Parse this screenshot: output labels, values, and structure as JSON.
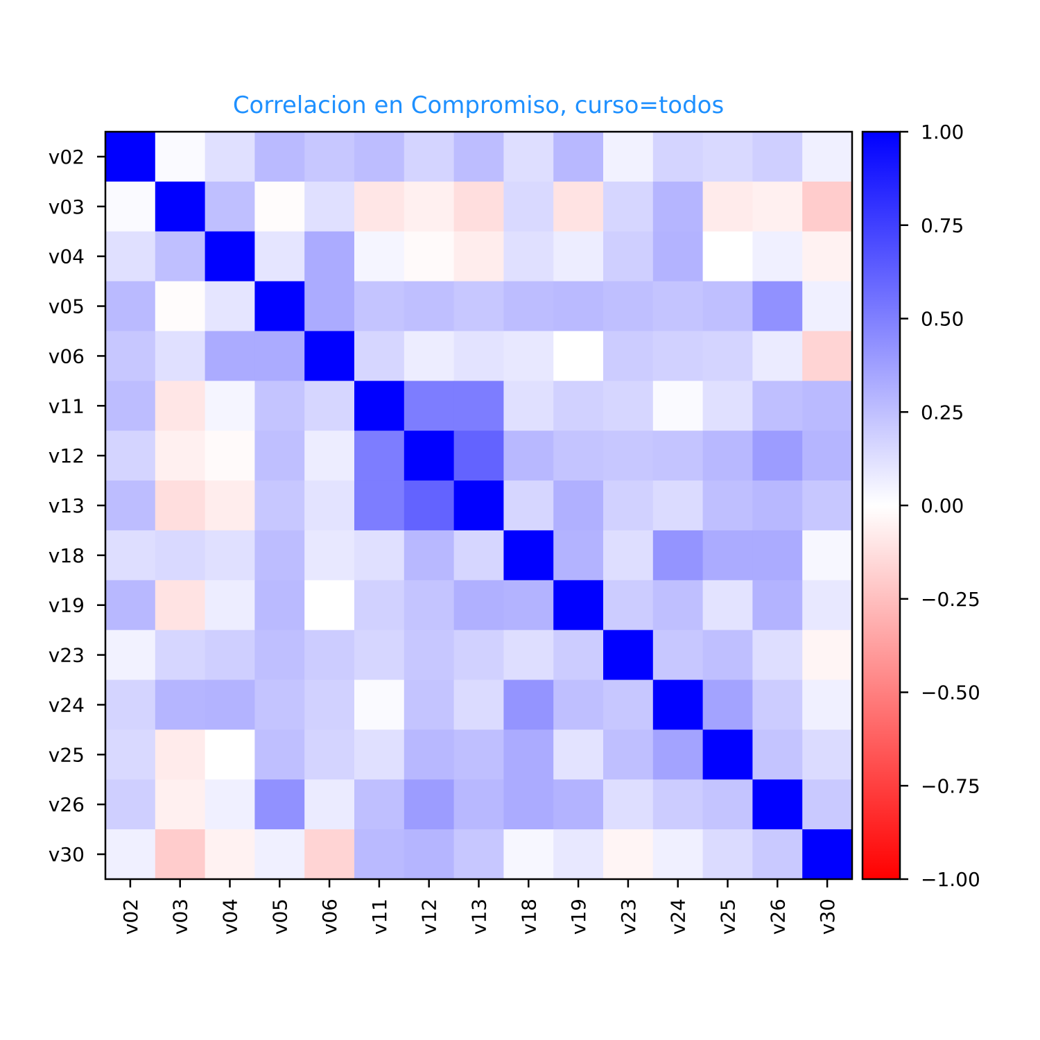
{
  "chart_data": {
    "type": "heatmap",
    "title": "Correlacion en Compromiso, curso=todos",
    "title_color": "#1e90ff",
    "labels": [
      "v02",
      "v03",
      "v04",
      "v05",
      "v06",
      "v11",
      "v12",
      "v13",
      "v18",
      "v19",
      "v23",
      "v24",
      "v25",
      "v26",
      "v30"
    ],
    "matrix": [
      [
        1.0,
        0.02,
        0.12,
        0.27,
        0.22,
        0.26,
        0.17,
        0.26,
        0.13,
        0.28,
        0.05,
        0.17,
        0.15,
        0.19,
        0.06
      ],
      [
        0.02,
        1.0,
        0.25,
        -0.01,
        0.12,
        -0.1,
        -0.06,
        -0.13,
        0.15,
        -0.11,
        0.16,
        0.29,
        -0.08,
        -0.06,
        -0.2
      ],
      [
        0.12,
        0.25,
        1.0,
        0.1,
        0.33,
        0.04,
        -0.02,
        -0.07,
        0.12,
        0.07,
        0.19,
        0.3,
        0.0,
        0.06,
        -0.05
      ],
      [
        0.27,
        -0.01,
        0.1,
        1.0,
        0.33,
        0.23,
        0.25,
        0.22,
        0.26,
        0.27,
        0.25,
        0.23,
        0.25,
        0.43,
        0.06
      ],
      [
        0.22,
        0.12,
        0.33,
        0.33,
        1.0,
        0.16,
        0.07,
        0.11,
        0.09,
        0.0,
        0.2,
        0.18,
        0.17,
        0.08,
        -0.17
      ],
      [
        0.26,
        -0.1,
        0.04,
        0.23,
        0.16,
        1.0,
        0.51,
        0.51,
        0.12,
        0.18,
        0.16,
        0.02,
        0.12,
        0.25,
        0.27
      ],
      [
        0.17,
        -0.06,
        -0.02,
        0.25,
        0.07,
        0.51,
        1.0,
        0.61,
        0.28,
        0.23,
        0.22,
        0.23,
        0.28,
        0.39,
        0.29
      ],
      [
        0.26,
        -0.13,
        -0.07,
        0.22,
        0.11,
        0.51,
        0.61,
        1.0,
        0.16,
        0.31,
        0.18,
        0.14,
        0.25,
        0.28,
        0.22
      ],
      [
        0.13,
        0.15,
        0.12,
        0.26,
        0.09,
        0.12,
        0.28,
        0.16,
        1.0,
        0.3,
        0.13,
        0.42,
        0.33,
        0.33,
        0.03
      ],
      [
        0.28,
        -0.11,
        0.07,
        0.27,
        0.0,
        0.18,
        0.23,
        0.31,
        0.3,
        1.0,
        0.2,
        0.25,
        0.11,
        0.3,
        0.09
      ],
      [
        0.05,
        0.16,
        0.19,
        0.25,
        0.2,
        0.16,
        0.22,
        0.18,
        0.13,
        0.2,
        1.0,
        0.22,
        0.25,
        0.13,
        -0.04
      ],
      [
        0.17,
        0.29,
        0.3,
        0.23,
        0.18,
        0.02,
        0.23,
        0.14,
        0.42,
        0.25,
        0.22,
        1.0,
        0.36,
        0.2,
        0.06
      ],
      [
        0.15,
        -0.08,
        0.0,
        0.25,
        0.17,
        0.12,
        0.28,
        0.25,
        0.33,
        0.11,
        0.25,
        0.36,
        1.0,
        0.23,
        0.14
      ],
      [
        0.19,
        -0.06,
        0.06,
        0.43,
        0.08,
        0.25,
        0.39,
        0.28,
        0.33,
        0.3,
        0.13,
        0.2,
        0.23,
        1.0,
        0.21
      ],
      [
        0.06,
        -0.2,
        -0.05,
        0.06,
        -0.17,
        0.27,
        0.29,
        0.22,
        0.03,
        0.09,
        -0.04,
        0.06,
        0.14,
        0.21,
        1.0
      ]
    ],
    "vmin": -1.0,
    "vmax": 1.0,
    "colormap": {
      "low": "#ff0000",
      "mid": "#ffffff",
      "high": "#0000ff"
    },
    "colorbar": {
      "ticks": [
        1.0,
        0.75,
        0.5,
        0.25,
        0.0,
        -0.25,
        -0.5,
        -0.75,
        -1.0
      ],
      "tick_labels": [
        "1.00",
        "0.75",
        "0.50",
        "0.25",
        "0.00",
        "−0.25",
        "−0.50",
        "−0.75",
        "−1.00"
      ]
    },
    "grid": false,
    "legend": "colorbar-right"
  }
}
